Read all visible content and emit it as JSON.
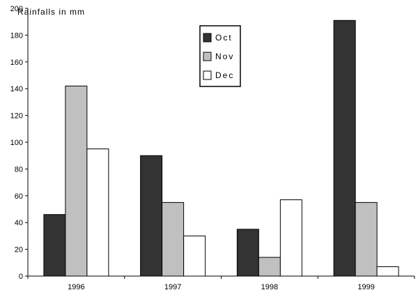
{
  "chart_data": {
    "type": "bar",
    "title": "Rainfalls in mm",
    "xlabel": "",
    "ylabel": "",
    "categories": [
      "1996",
      "1997",
      "1998",
      "1999"
    ],
    "ylim": [
      0,
      200
    ],
    "yticks": [
      0,
      20,
      40,
      60,
      80,
      100,
      120,
      140,
      160,
      180,
      200
    ],
    "grid": false,
    "legend_position": "top-center",
    "series": [
      {
        "name": "Oct",
        "color": "#333333",
        "values": [
          46,
          90,
          35,
          191
        ]
      },
      {
        "name": "Nov",
        "color": "#c0c0c0",
        "values": [
          142,
          55,
          14,
          55
        ]
      },
      {
        "name": "Dec",
        "color": "#ffffff",
        "values": [
          95,
          30,
          57,
          7
        ]
      }
    ]
  }
}
